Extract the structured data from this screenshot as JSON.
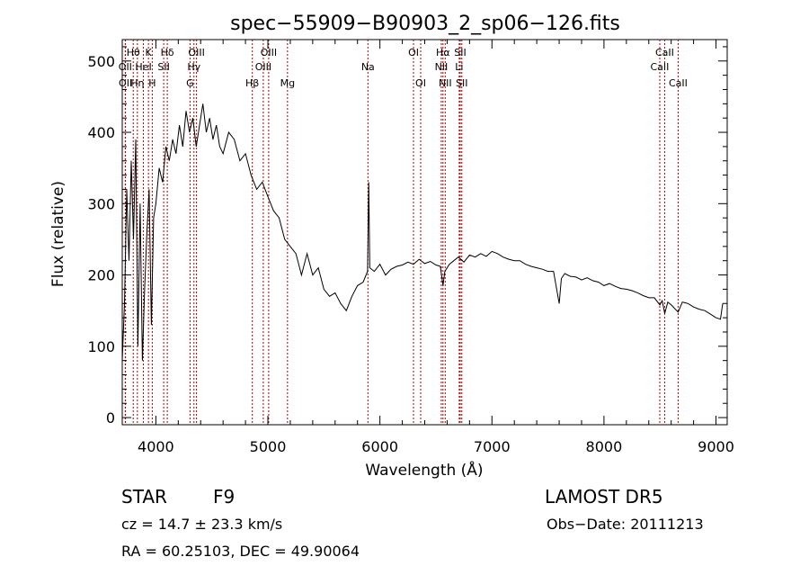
{
  "chart_data": {
    "type": "line",
    "title": "spec−55909−B90903_2_sp06−126.fits",
    "xlabel": "Wavelength (Å)",
    "ylabel": "Flux (relative)",
    "xlim": [
      3700,
      9100
    ],
    "ylim": [
      -10,
      530
    ],
    "xticks": [
      4000,
      5000,
      6000,
      7000,
      8000,
      9000
    ],
    "yticks": [
      0,
      100,
      200,
      300,
      400,
      500
    ],
    "grid": false,
    "line_color": "#000000",
    "marker_color": "#aa0000",
    "spectrum": {
      "name": "",
      "x": [
        3700,
        3720,
        3740,
        3760,
        3780,
        3800,
        3820,
        3840,
        3860,
        3880,
        3900,
        3920,
        3940,
        3960,
        3980,
        4000,
        4030,
        4060,
        4090,
        4120,
        4150,
        4180,
        4210,
        4240,
        4270,
        4300,
        4330,
        4360,
        4390,
        4420,
        4450,
        4480,
        4510,
        4540,
        4570,
        4600,
        4650,
        4700,
        4750,
        4800,
        4850,
        4900,
        4950,
        5000,
        5050,
        5100,
        5150,
        5200,
        5250,
        5300,
        5350,
        5400,
        5450,
        5500,
        5550,
        5600,
        5650,
        5700,
        5750,
        5800,
        5850,
        5890,
        5900,
        5910,
        5950,
        6000,
        6050,
        6100,
        6150,
        6200,
        6250,
        6300,
        6350,
        6400,
        6450,
        6500,
        6540,
        6563,
        6580,
        6620,
        6660,
        6700,
        6750,
        6800,
        6850,
        6900,
        6950,
        7000,
        7050,
        7100,
        7150,
        7200,
        7250,
        7300,
        7350,
        7400,
        7450,
        7500,
        7550,
        7600,
        7620,
        7650,
        7700,
        7750,
        7800,
        7850,
        7900,
        7950,
        8000,
        8050,
        8100,
        8150,
        8200,
        8250,
        8300,
        8350,
        8400,
        8450,
        8498,
        8520,
        8542,
        8570,
        8600,
        8662,
        8700,
        8750,
        8800,
        8850,
        8900,
        8950,
        9000,
        9040,
        9060
      ],
      "y": [
        80,
        160,
        320,
        220,
        360,
        250,
        390,
        100,
        300,
        80,
        180,
        260,
        320,
        130,
        280,
        300,
        350,
        330,
        380,
        360,
        390,
        370,
        410,
        380,
        430,
        400,
        420,
        380,
        410,
        440,
        400,
        420,
        390,
        410,
        380,
        370,
        400,
        390,
        360,
        370,
        340,
        320,
        330,
        310,
        290,
        280,
        250,
        240,
        230,
        200,
        230,
        200,
        210,
        180,
        170,
        175,
        160,
        150,
        170,
        185,
        190,
        205,
        330,
        210,
        205,
        215,
        200,
        208,
        212,
        214,
        218,
        215,
        222,
        216,
        219,
        214,
        212,
        185,
        205,
        215,
        220,
        225,
        218,
        228,
        225,
        230,
        226,
        233,
        230,
        225,
        222,
        220,
        220,
        215,
        212,
        210,
        208,
        205,
        205,
        160,
        195,
        202,
        198,
        197,
        193,
        196,
        192,
        190,
        185,
        188,
        184,
        181,
        180,
        178,
        175,
        171,
        168,
        168,
        158,
        164,
        146,
        162,
        158,
        148,
        162,
        160,
        155,
        152,
        150,
        145,
        140,
        138,
        160
      ]
    },
    "lines": [
      {
        "label": "Hθ",
        "x": 3798,
        "row": 1
      },
      {
        "label": "K",
        "x": 3934,
        "row": 1
      },
      {
        "label": "Hδ",
        "x": 4102,
        "row": 1
      },
      {
        "label": "OIII",
        "x": 4363,
        "row": 1
      },
      {
        "label": "OIII",
        "x": 5007,
        "row": 1
      },
      {
        "label": "OI",
        "x": 6300,
        "row": 1
      },
      {
        "label": "Hα",
        "x": 6563,
        "row": 1
      },
      {
        "label": "SII",
        "x": 6717,
        "row": 1
      },
      {
        "label": "CaII",
        "x": 8542,
        "row": 1
      },
      {
        "label": "OII",
        "x": 3727,
        "row": 2
      },
      {
        "label": "HeI",
        "x": 3889,
        "row": 2
      },
      {
        "label": "SII",
        "x": 4070,
        "row": 2
      },
      {
        "label": "Hγ",
        "x": 4340,
        "row": 2
      },
      {
        "label": "OIII",
        "x": 4959,
        "row": 2
      },
      {
        "label": "Na",
        "x": 5893,
        "row": 2
      },
      {
        "label": "NII",
        "x": 6548,
        "row": 2
      },
      {
        "label": "Li",
        "x": 6708,
        "row": 2
      },
      {
        "label": "CaII",
        "x": 8498,
        "row": 2
      },
      {
        "label": "OII",
        "x": 3729,
        "row": 3
      },
      {
        "label": "Hη",
        "x": 3835,
        "row": 3
      },
      {
        "label": "H",
        "x": 3968,
        "row": 3
      },
      {
        "label": "G",
        "x": 4305,
        "row": 3
      },
      {
        "label": "Hβ",
        "x": 4861,
        "row": 3
      },
      {
        "label": "Mg",
        "x": 5175,
        "row": 3
      },
      {
        "label": "OI",
        "x": 6364,
        "row": 3
      },
      {
        "label": "NII",
        "x": 6583,
        "row": 3
      },
      {
        "label": "SII",
        "x": 6731,
        "row": 3
      },
      {
        "label": "CaII",
        "x": 8662,
        "row": 3
      }
    ]
  },
  "info": {
    "object_class": "STAR",
    "subclass": "F9",
    "survey": "LAMOST  DR5",
    "redshift": "cz = 14.7 ± 23.3 km/s",
    "obs_date": "Obs−Date: 20111213",
    "coords": "RA =  60.25103, DEC =  49.90064"
  }
}
